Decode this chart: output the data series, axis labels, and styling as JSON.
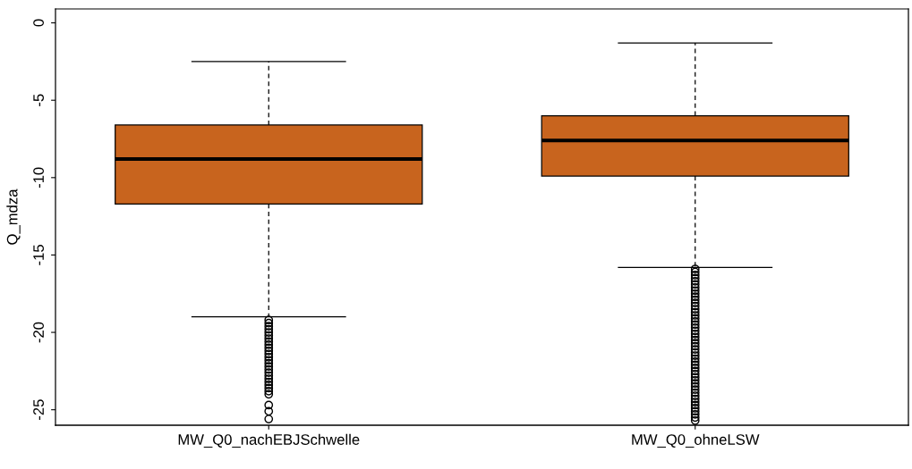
{
  "chart_data": {
    "type": "box",
    "ylabel": "Q_mdza",
    "categories": [
      "MW_Q0_nachEBJSchwelle",
      "MW_Q0_ohneLSW"
    ],
    "ylim": [
      -26.0,
      0.9
    ],
    "yticks": [
      0,
      -5,
      -10,
      -15,
      -20,
      -25
    ],
    "grid": false,
    "legend": false,
    "marker": "circle",
    "series": [
      {
        "color": "#c8641e",
        "boxes": [
          {
            "low": -19.0,
            "q1": -11.7,
            "median": -8.8,
            "q3": -6.6,
            "high": -2.5,
            "outliers": [
              -19.2,
              -19.4,
              -19.6,
              -19.8,
              -20.0,
              -20.2,
              -20.4,
              -20.6,
              -20.8,
              -21.0,
              -21.2,
              -21.4,
              -21.6,
              -21.8,
              -22.0,
              -22.2,
              -22.4,
              -22.6,
              -22.8,
              -23.0,
              -23.2,
              -23.4,
              -23.6,
              -23.8,
              -24.0,
              -24.7,
              -25.1,
              -25.6
            ]
          },
          {
            "low": -15.8,
            "q1": -9.9,
            "median": -7.6,
            "q3": -6.0,
            "high": -1.3,
            "outliers": [
              -15.9,
              -16.1,
              -16.3,
              -16.5,
              -16.7,
              -16.9,
              -17.1,
              -17.3,
              -17.5,
              -17.7,
              -17.9,
              -18.1,
              -18.3,
              -18.5,
              -18.7,
              -18.9,
              -19.1,
              -19.3,
              -19.5,
              -19.7,
              -19.9,
              -20.1,
              -20.3,
              -20.5,
              -20.7,
              -20.9,
              -21.1,
              -21.3,
              -21.5,
              -21.7,
              -21.9,
              -22.1,
              -22.3,
              -22.5,
              -22.7,
              -22.9,
              -23.1,
              -23.3,
              -23.5,
              -23.7,
              -23.9,
              -24.1,
              -24.3,
              -24.5,
              -24.7,
              -24.9,
              -25.1,
              -25.3,
              -25.5,
              -25.7
            ]
          }
        ]
      }
    ]
  }
}
